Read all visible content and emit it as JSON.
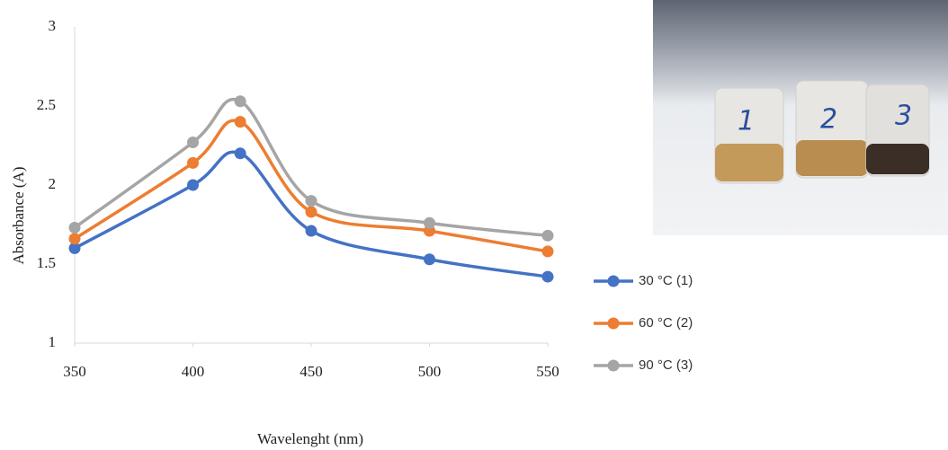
{
  "chart_data": {
    "type": "line",
    "x_label": "Wavelenght (nm)",
    "y_label": "Absorbance (A)",
    "x": [
      350,
      400,
      420,
      450,
      500,
      550
    ],
    "series": [
      {
        "name": "30 °C (1)",
        "color": "#4472c4",
        "values": [
          1.6,
          2.0,
          2.2,
          1.71,
          1.53,
          1.42
        ]
      },
      {
        "name": "60 °C (2)",
        "color": "#ed7d31",
        "values": [
          1.66,
          2.14,
          2.4,
          1.83,
          1.71,
          1.58
        ]
      },
      {
        "name": "90 °C (3)",
        "color": "#a5a5a5",
        "values": [
          1.73,
          2.27,
          2.53,
          1.9,
          1.76,
          1.68
        ]
      }
    ],
    "xlim": [
      350,
      550
    ],
    "xticks": [
      350,
      400,
      450,
      500,
      550
    ],
    "ylim": [
      1,
      3
    ],
    "yticks": [
      1,
      1.5,
      2,
      2.5,
      3
    ],
    "smooth": true,
    "grid": false,
    "legend": "right"
  },
  "photo": {
    "labels": [
      "1",
      "2",
      "3"
    ]
  }
}
